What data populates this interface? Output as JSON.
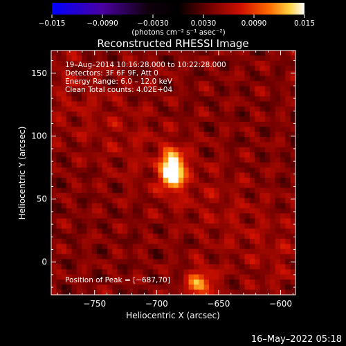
{
  "chart_data": {
    "type": "heatmap",
    "title": "Reconstructed RHESSI Image",
    "xlabel": "Heliocentric X (arcsec)",
    "ylabel": "Heliocentric Y (arcsec)",
    "xlim": [
      -785,
      -588
    ],
    "ylim": [
      -26,
      168
    ],
    "xticks": [
      -750,
      -700,
      -650,
      -600
    ],
    "xtick_labels": [
      "−750",
      "−700",
      "−650",
      "−600"
    ],
    "yticks": [
      0,
      50,
      100,
      150
    ],
    "ytick_labels": [
      "0",
      "50",
      "100",
      "150"
    ],
    "colorbar": {
      "min": -0.015,
      "max": 0.015,
      "ticks": [
        -0.015,
        -0.009,
        -0.003,
        0.003,
        0.009,
        0.015
      ],
      "tick_labels": [
        "−0.015",
        "−0.0090",
        "−0.0030",
        "0.0030",
        "0.0090",
        "0.015"
      ],
      "unit_label": "(photons cm⁻² s⁻¹ asec⁻²)",
      "colors": [
        "#0000ff",
        "#3b0080",
        "#000000",
        "#6a0000",
        "#c00000",
        "#ff5000",
        "#ffb000",
        "#ffffff"
      ]
    },
    "peak": {
      "x": -687,
      "y": 70,
      "label": "Position of Peak = [−687,70]"
    },
    "annotations": [
      "19–Aug–2014 10:16:28.000 to 10:22:28.000",
      "Detectors: 3F 6F 9F, Att 0",
      "Energy Range: 6.0 – 12.0 keV",
      "Clean    Total counts: 4.02E+04"
    ],
    "sources": [
      {
        "x": -687,
        "y": 73,
        "amplitude": 0.015
      },
      {
        "x": -665,
        "y": -18,
        "amplitude": 0.007
      }
    ]
  },
  "footer": {
    "timestamp": "16–May–2022 05:18"
  }
}
